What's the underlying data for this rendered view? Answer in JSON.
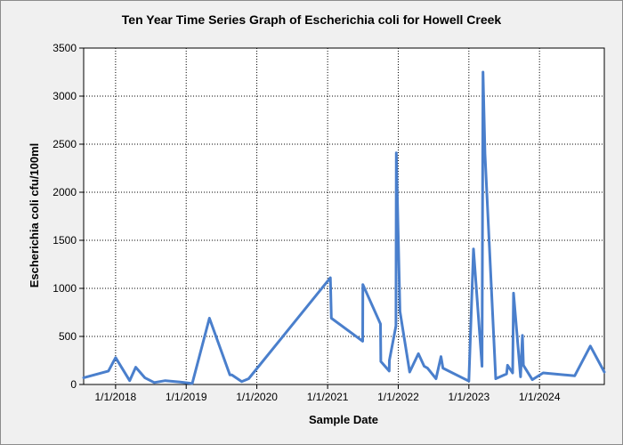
{
  "chart_data": {
    "type": "line",
    "title": "Ten Year Time Series Graph of Escherichia coli for Howell Creek",
    "xlabel": "Sample Date",
    "ylabel": "Escherichia coli cfu/100ml",
    "xlim": [
      "2017-07-20",
      "2024-12-01"
    ],
    "ylim": [
      0,
      3500
    ],
    "y_ticks": [
      0,
      500,
      1000,
      1500,
      2000,
      2500,
      3000,
      3500
    ],
    "x_ticks": [
      {
        "label": "1/1/2018",
        "date": "2018-01-01"
      },
      {
        "label": "1/1/2019",
        "date": "2019-01-01"
      },
      {
        "label": "1/1/2020",
        "date": "2020-01-01"
      },
      {
        "label": "1/1/2021",
        "date": "2021-01-01"
      },
      {
        "label": "1/1/2022",
        "date": "2022-01-01"
      },
      {
        "label": "1/1/2023",
        "date": "2023-01-01"
      },
      {
        "label": "1/1/2024",
        "date": "2024-01-01"
      }
    ],
    "grid": true,
    "line_color": "#4a7fcc",
    "series": [
      {
        "x": [
          "2017-07-20",
          "2017-11-25",
          "2018-01-01",
          "2018-03-15",
          "2018-04-15",
          "2018-06-01",
          "2018-07-20",
          "2018-09-15",
          "2018-12-01",
          "2019-02-01",
          "2019-05-01",
          "2019-08-15",
          "2019-08-25",
          "2019-10-15",
          "2019-11-20",
          "2021-01-15",
          "2021-01-20",
          "2021-07-01",
          "2021-07-02",
          "2021-10-01",
          "2021-10-03",
          "2021-11-15",
          "2021-11-16",
          "2021-12-20",
          "2021-12-22",
          "2022-01-10",
          "2022-03-01",
          "2022-04-15",
          "2022-05-15",
          "2022-06-01",
          "2022-07-15",
          "2022-08-10",
          "2022-08-20",
          "2023-01-01",
          "2023-01-25",
          "2023-03-10",
          "2023-03-15",
          "2023-03-25",
          "2023-05-20",
          "2023-07-15",
          "2023-07-20",
          "2023-08-15",
          "2023-08-20",
          "2023-09-25",
          "2023-10-05",
          "2023-10-10",
          "2023-11-25",
          "2024-01-20",
          "2024-07-01",
          "2024-09-20",
          "2024-12-01"
        ],
        "y": [
          70,
          140,
          280,
          40,
          180,
          70,
          20,
          40,
          25,
          10,
          690,
          100,
          100,
          30,
          60,
          1110,
          690,
          450,
          1040,
          630,
          240,
          140,
          250,
          610,
          2410,
          760,
          130,
          320,
          190,
          170,
          60,
          290,
          170,
          35,
          1410,
          190,
          3250,
          2400,
          60,
          110,
          200,
          120,
          950,
          80,
          510,
          200,
          50,
          120,
          90,
          400,
          130
        ]
      }
    ]
  }
}
